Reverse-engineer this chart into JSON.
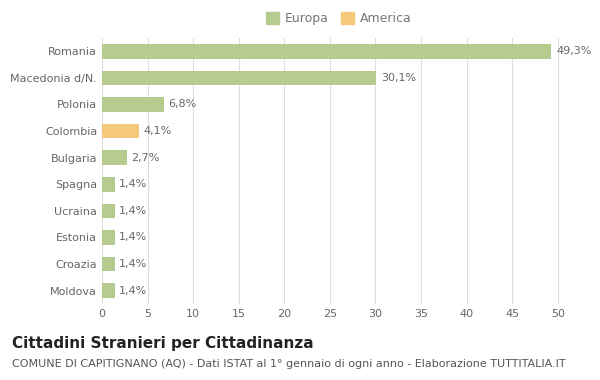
{
  "categories": [
    "Moldova",
    "Croazia",
    "Estonia",
    "Ucraina",
    "Spagna",
    "Bulgaria",
    "Colombia",
    "Polonia",
    "Macedonia d/N.",
    "Romania"
  ],
  "values": [
    1.4,
    1.4,
    1.4,
    1.4,
    1.4,
    2.7,
    4.1,
    6.8,
    30.1,
    49.3
  ],
  "colors": [
    "#b5cc8e",
    "#b5cc8e",
    "#b5cc8e",
    "#b5cc8e",
    "#b5cc8e",
    "#b5cc8e",
    "#f5c97a",
    "#b5cc8e",
    "#b5cc8e",
    "#b5cc8e"
  ],
  "labels": [
    "1,4%",
    "1,4%",
    "1,4%",
    "1,4%",
    "1,4%",
    "2,7%",
    "4,1%",
    "6,8%",
    "30,1%",
    "49,3%"
  ],
  "legend_europa_color": "#b5cc8e",
  "legend_america_color": "#f5c97a",
  "title": "Cittadini Stranieri per Cittadinanza",
  "subtitle": "COMUNE DI CAPITIGNANO (AQ) - Dati ISTAT al 1° gennaio di ogni anno - Elaborazione TUTTITALIA.IT",
  "xlim": [
    0,
    52
  ],
  "xticks": [
    0,
    5,
    10,
    15,
    20,
    25,
    30,
    35,
    40,
    45,
    50
  ],
  "background_color": "#ffffff",
  "grid_color": "#dddddd",
  "bar_height": 0.55,
  "title_fontsize": 11,
  "subtitle_fontsize": 8,
  "label_fontsize": 8,
  "tick_fontsize": 8,
  "legend_fontsize": 9,
  "ytick_fontsize": 8
}
